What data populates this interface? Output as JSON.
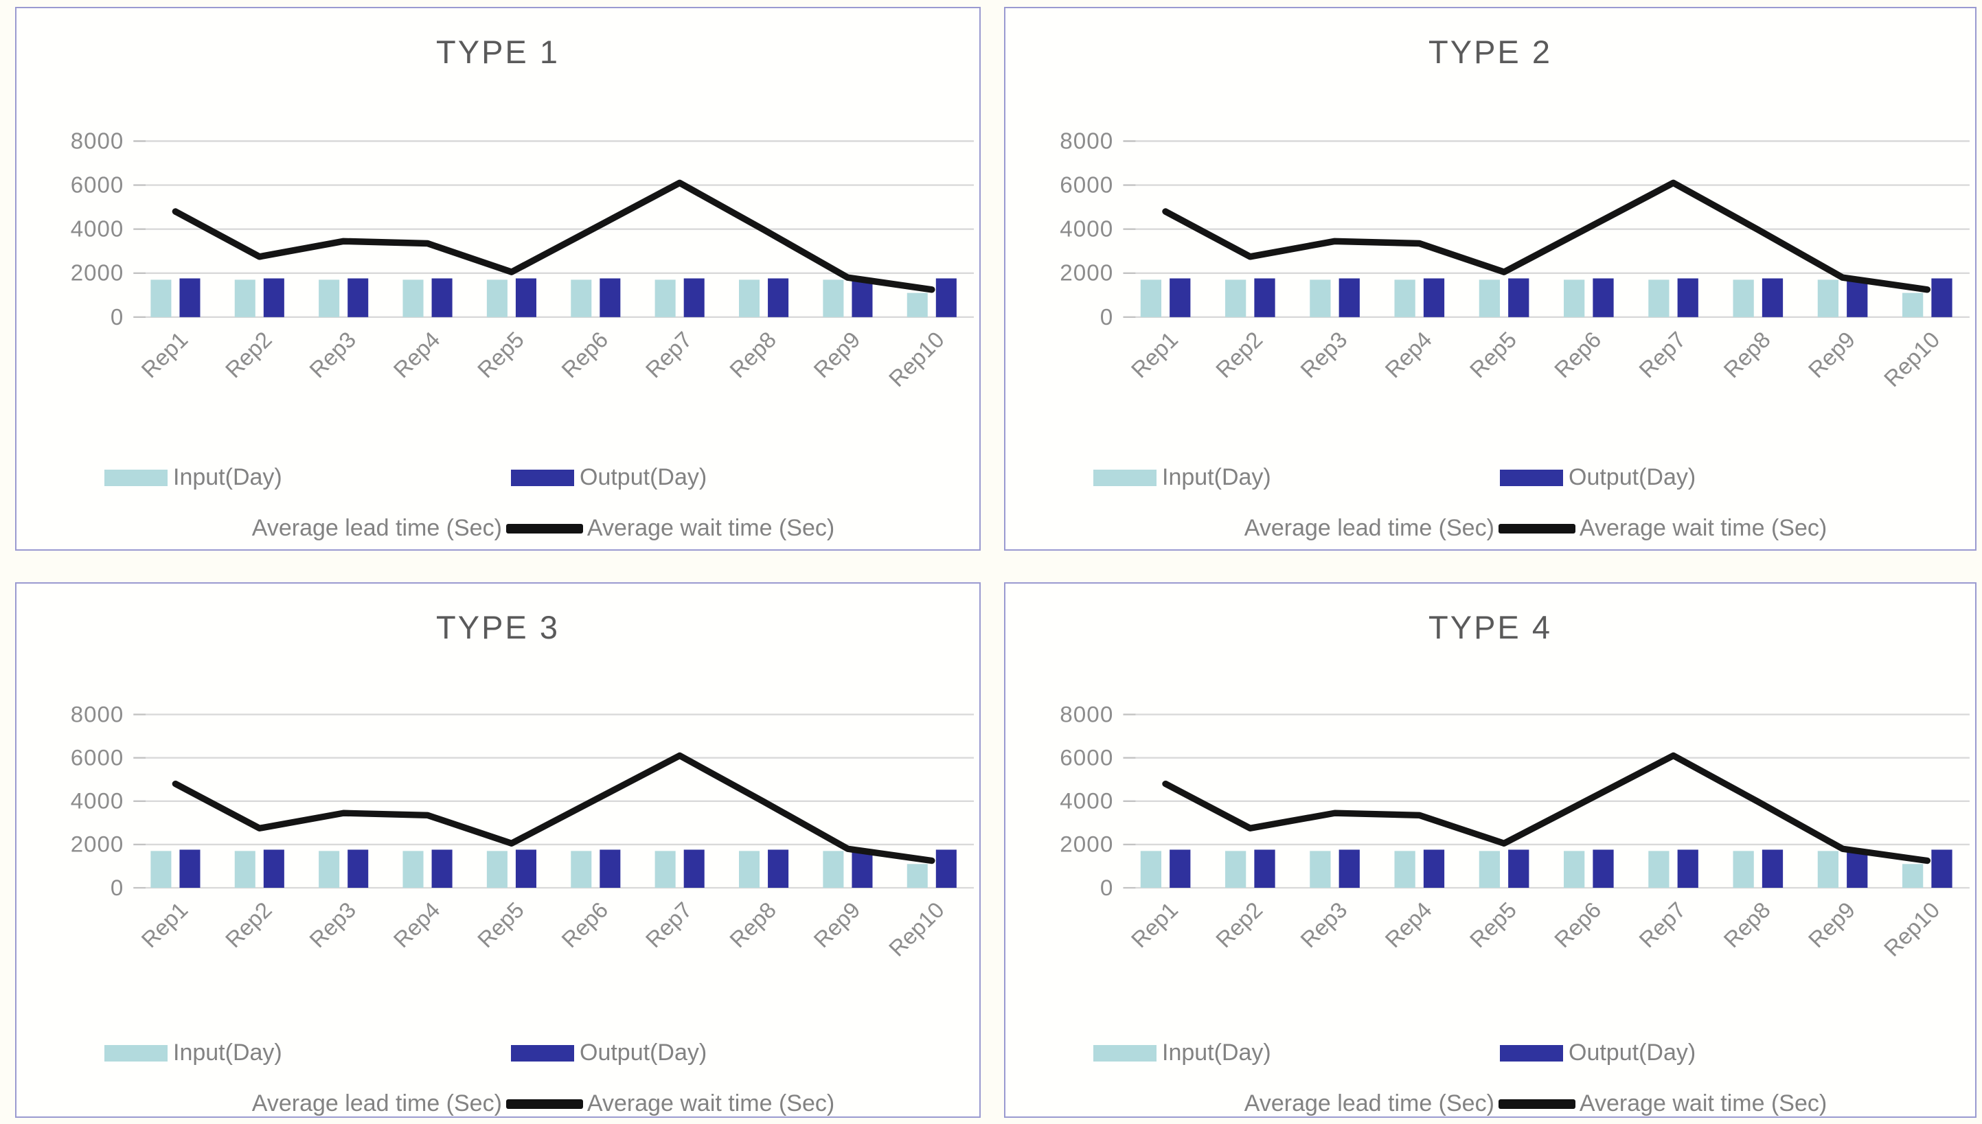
{
  "legend": {
    "input_label": "Input(Day)",
    "output_label": "Output(Day)",
    "lead_label": "Average lead time (Sec)",
    "wait_label": "Average wait time (Sec)"
  },
  "colors": {
    "input_bar": "#b2dadd",
    "output_bar": "#2f319d",
    "wait_line": "#141414",
    "gridline": "#d9d9d9",
    "tick_stub": "#c2c2c2",
    "tick_text": "#8c8c8c",
    "title_text": "#5a5a5a",
    "legend_text": "#828282",
    "panel_border": "#9a9ad0"
  },
  "chart_data": [
    {
      "type": "combo",
      "title": "TYPE 1",
      "categories": [
        "Rep1",
        "Rep2",
        "Rep3",
        "Rep4",
        "Rep5",
        "Rep6",
        "Rep7",
        "Rep8",
        "Rep9",
        "Rep10"
      ],
      "ylim": [
        0,
        8000
      ],
      "yticks": [
        0,
        2000,
        4000,
        6000,
        8000
      ],
      "grid": true,
      "legend_position": "bottom",
      "series": [
        {
          "name": "Input(Day)",
          "kind": "bar",
          "values": [
            1700,
            1700,
            1700,
            1700,
            1700,
            1700,
            1700,
            1700,
            1700,
            1100
          ]
        },
        {
          "name": "Output(Day)",
          "kind": "bar",
          "values": [
            1760,
            1760,
            1760,
            1760,
            1760,
            1760,
            1760,
            1760,
            1760,
            1760
          ]
        },
        {
          "name": "Average lead time (Sec)",
          "kind": "line",
          "visible": false,
          "values": []
        },
        {
          "name": "Average wait time (Sec)",
          "kind": "line",
          "visible": true,
          "values": [
            4800,
            2750,
            3450,
            3350,
            2050,
            4075,
            6100,
            3975,
            1800,
            1250
          ]
        }
      ]
    },
    {
      "type": "combo",
      "title": "TYPE 2",
      "categories": [
        "Rep1",
        "Rep2",
        "Rep3",
        "Rep4",
        "Rep5",
        "Rep6",
        "Rep7",
        "Rep8",
        "Rep9",
        "Rep10"
      ],
      "ylim": [
        0,
        8000
      ],
      "yticks": [
        0,
        2000,
        4000,
        6000,
        8000
      ],
      "grid": true,
      "legend_position": "bottom",
      "series": [
        {
          "name": "Input(Day)",
          "kind": "bar",
          "values": [
            1700,
            1700,
            1700,
            1700,
            1700,
            1700,
            1700,
            1700,
            1700,
            1100
          ]
        },
        {
          "name": "Output(Day)",
          "kind": "bar",
          "values": [
            1760,
            1760,
            1760,
            1760,
            1760,
            1760,
            1760,
            1760,
            1760,
            1760
          ]
        },
        {
          "name": "Average lead time (Sec)",
          "kind": "line",
          "visible": false,
          "values": []
        },
        {
          "name": "Average wait time (Sec)",
          "kind": "line",
          "visible": true,
          "values": [
            4800,
            2750,
            3450,
            3350,
            2050,
            4075,
            6100,
            3975,
            1800,
            1250
          ]
        }
      ]
    },
    {
      "type": "combo",
      "title": "TYPE 3",
      "categories": [
        "Rep1",
        "Rep2",
        "Rep3",
        "Rep4",
        "Rep5",
        "Rep6",
        "Rep7",
        "Rep8",
        "Rep9",
        "Rep10"
      ],
      "ylim": [
        0,
        8000
      ],
      "yticks": [
        0,
        2000,
        4000,
        6000,
        8000
      ],
      "grid": true,
      "legend_position": "bottom",
      "series": [
        {
          "name": "Input(Day)",
          "kind": "bar",
          "values": [
            1700,
            1700,
            1700,
            1700,
            1700,
            1700,
            1700,
            1700,
            1700,
            1100
          ]
        },
        {
          "name": "Output(Day)",
          "kind": "bar",
          "values": [
            1760,
            1760,
            1760,
            1760,
            1760,
            1760,
            1760,
            1760,
            1760,
            1760
          ]
        },
        {
          "name": "Average lead time (Sec)",
          "kind": "line",
          "visible": false,
          "values": []
        },
        {
          "name": "Average wait time (Sec)",
          "kind": "line",
          "visible": true,
          "values": [
            4800,
            2750,
            3450,
            3350,
            2050,
            4075,
            6100,
            3975,
            1800,
            1250
          ]
        }
      ]
    },
    {
      "type": "combo",
      "title": "TYPE 4",
      "categories": [
        "Rep1",
        "Rep2",
        "Rep3",
        "Rep4",
        "Rep5",
        "Rep6",
        "Rep7",
        "Rep8",
        "Rep9",
        "Rep10"
      ],
      "ylim": [
        0,
        8000
      ],
      "yticks": [
        0,
        2000,
        4000,
        6000,
        8000
      ],
      "grid": true,
      "legend_position": "bottom",
      "series": [
        {
          "name": "Input(Day)",
          "kind": "bar",
          "values": [
            1700,
            1700,
            1700,
            1700,
            1700,
            1700,
            1700,
            1700,
            1700,
            1100
          ]
        },
        {
          "name": "Output(Day)",
          "kind": "bar",
          "values": [
            1760,
            1760,
            1760,
            1760,
            1760,
            1760,
            1760,
            1760,
            1760,
            1760
          ]
        },
        {
          "name": "Average lead time (Sec)",
          "kind": "line",
          "visible": false,
          "values": []
        },
        {
          "name": "Average wait time (Sec)",
          "kind": "line",
          "visible": true,
          "values": [
            4800,
            2750,
            3450,
            3350,
            2050,
            4075,
            6100,
            3975,
            1800,
            1250
          ]
        }
      ]
    }
  ]
}
